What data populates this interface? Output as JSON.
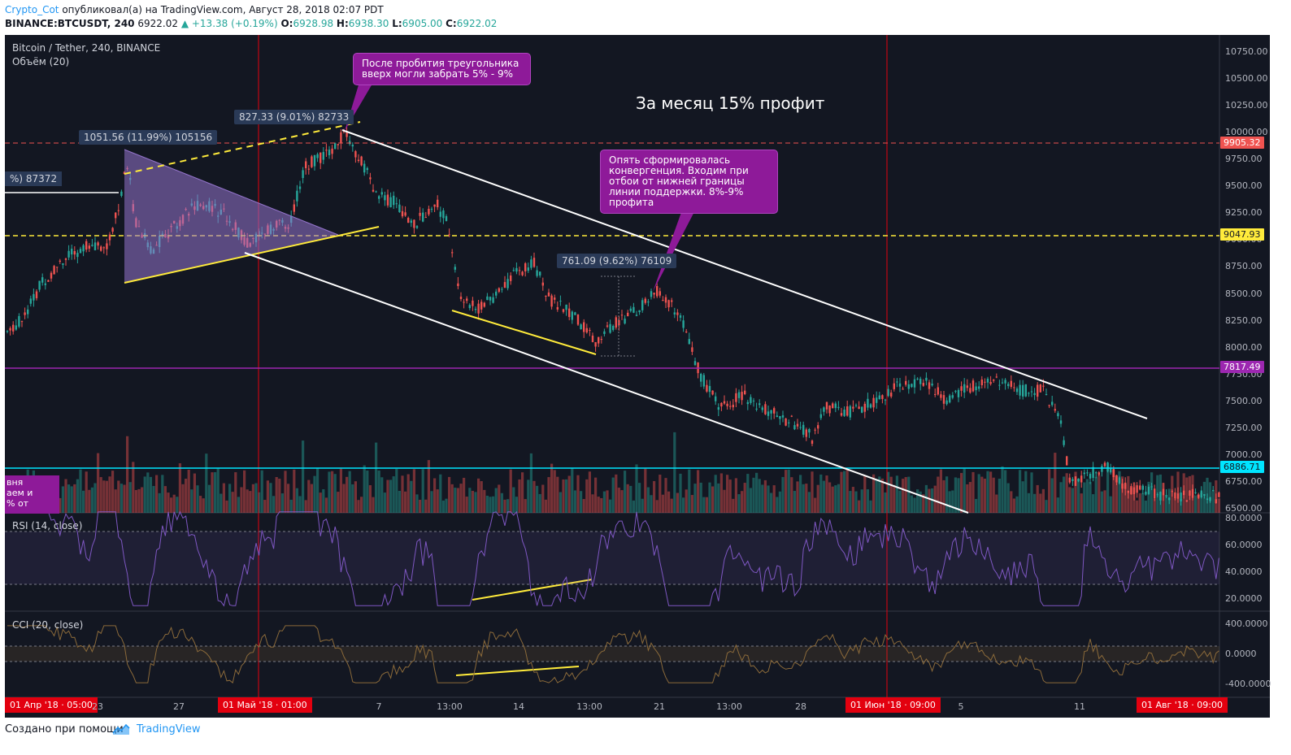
{
  "header": {
    "author": "Crypto_Cot",
    "published_text": " опубликовал(а) на TradingView.com, Август 28, 2018 02:07 PDT",
    "symbol": "BINANCE:BTCUSDT, 240",
    "last": "6922.02",
    "change": "▲ +13.38 (+0.19%)",
    "o_label": "O:",
    "o_value": "6928.98",
    "h_label": "H:",
    "h_value": "6938.30",
    "l_label": "L:",
    "l_value": "6905.00",
    "c_label": "C:",
    "c_value": "6922.02"
  },
  "legends": {
    "main": "Bitcoin / Tether, 240, BINANCE",
    "volume": "Объём (20)",
    "rsi": "RSI (14, close)",
    "cci": "CCI (20, close)"
  },
  "annotations": {
    "callout_triangle": "После пробития треугольника\nвверх могли забрать 5% - 9%",
    "callout_convergence": "Опять сформировалась\nконвергенция. Входим при\nотбои от нижней границы\nлинии поддержки. 8%-9%\nпрофита",
    "monthly_profit": "За месяц 15% профит",
    "measure_1": "1051.56 (11.99%) 105156",
    "measure_2": "827.33 (9.01%) 82733",
    "measure_3": "761.09 (9.62%) 76109",
    "measure_left": "%) 87372",
    "clipped_note": "вня\nаем и\n% от"
  },
  "price_axis": [
    "10750.00",
    "10500.00",
    "10250.00",
    "10000.00",
    "9750.00",
    "9500.00",
    "9250.00",
    "9000.00",
    "8750.00",
    "8500.00",
    "8250.00",
    "8000.00",
    "7750.00",
    "7500.00",
    "7250.00",
    "7000.00",
    "6750.00",
    "6500.00"
  ],
  "price_tags": [
    {
      "value": "9905.32",
      "bg": "#ef5350",
      "fg": "#ffffff"
    },
    {
      "value": "9047.93",
      "bg": "#ffeb3b",
      "fg": "#131722"
    },
    {
      "value": "7817.49",
      "bg": "#9c27b0",
      "fg": "#ffffff"
    },
    {
      "value": "6886.71",
      "bg": "#00e5ff",
      "fg": "#131722"
    }
  ],
  "rsi_axis": [
    "80.0000",
    "60.0000",
    "40.0000",
    "20.0000"
  ],
  "cci_axis": [
    "400.0000",
    "0.0000",
    "-400.0000"
  ],
  "time_axis": {
    "red_labels": [
      "01 Апр '18 · 05:00",
      "01 Май '18 · 01:00",
      "01 Июн '18 · 09:00",
      "01 Авг '18 · 09:00"
    ],
    "labels": [
      "23",
      "27",
      "7",
      "13:00",
      "14",
      "13:00",
      "21",
      "13:00",
      "28",
      "5",
      "11"
    ]
  },
  "footer": {
    "made_with": "Создано при помощи",
    "brand": "TradingView"
  },
  "colors": {
    "background": "#131722",
    "up": "#26a69a",
    "down": "#ef5350",
    "channel": "#ffffff",
    "support": "#ffeb3b",
    "rsi": "#7e57c2"
  }
}
